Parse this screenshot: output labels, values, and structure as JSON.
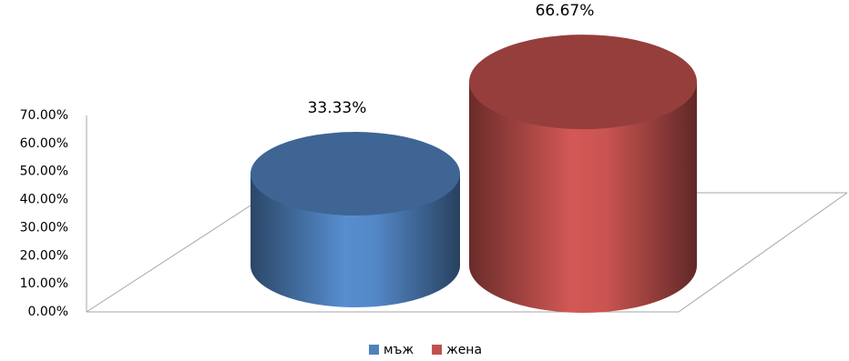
{
  "chart_data": {
    "type": "cylinder",
    "categories": [
      null
    ],
    "series": [
      {
        "name": "мъж",
        "color": "#4f81bd",
        "values": [
          33.33
        ],
        "value_labels": [
          "33.33%"
        ]
      },
      {
        "name": "жена",
        "color": "#c0504d",
        "values": [
          66.67
        ],
        "value_labels": [
          "66.67%"
        ]
      }
    ],
    "ylim": [
      0,
      70
    ],
    "yticks": [
      {
        "value": 0,
        "label": "0.00%"
      },
      {
        "value": 10,
        "label": "10.00%"
      },
      {
        "value": 20,
        "label": "20.00%"
      },
      {
        "value": 30,
        "label": "30.00%"
      },
      {
        "value": 40,
        "label": "40.00%"
      },
      {
        "value": 50,
        "label": "50.00%"
      },
      {
        "value": 60,
        "label": "60.00%"
      },
      {
        "value": 70,
        "label": "70.00%"
      }
    ],
    "legend": "bottom"
  }
}
